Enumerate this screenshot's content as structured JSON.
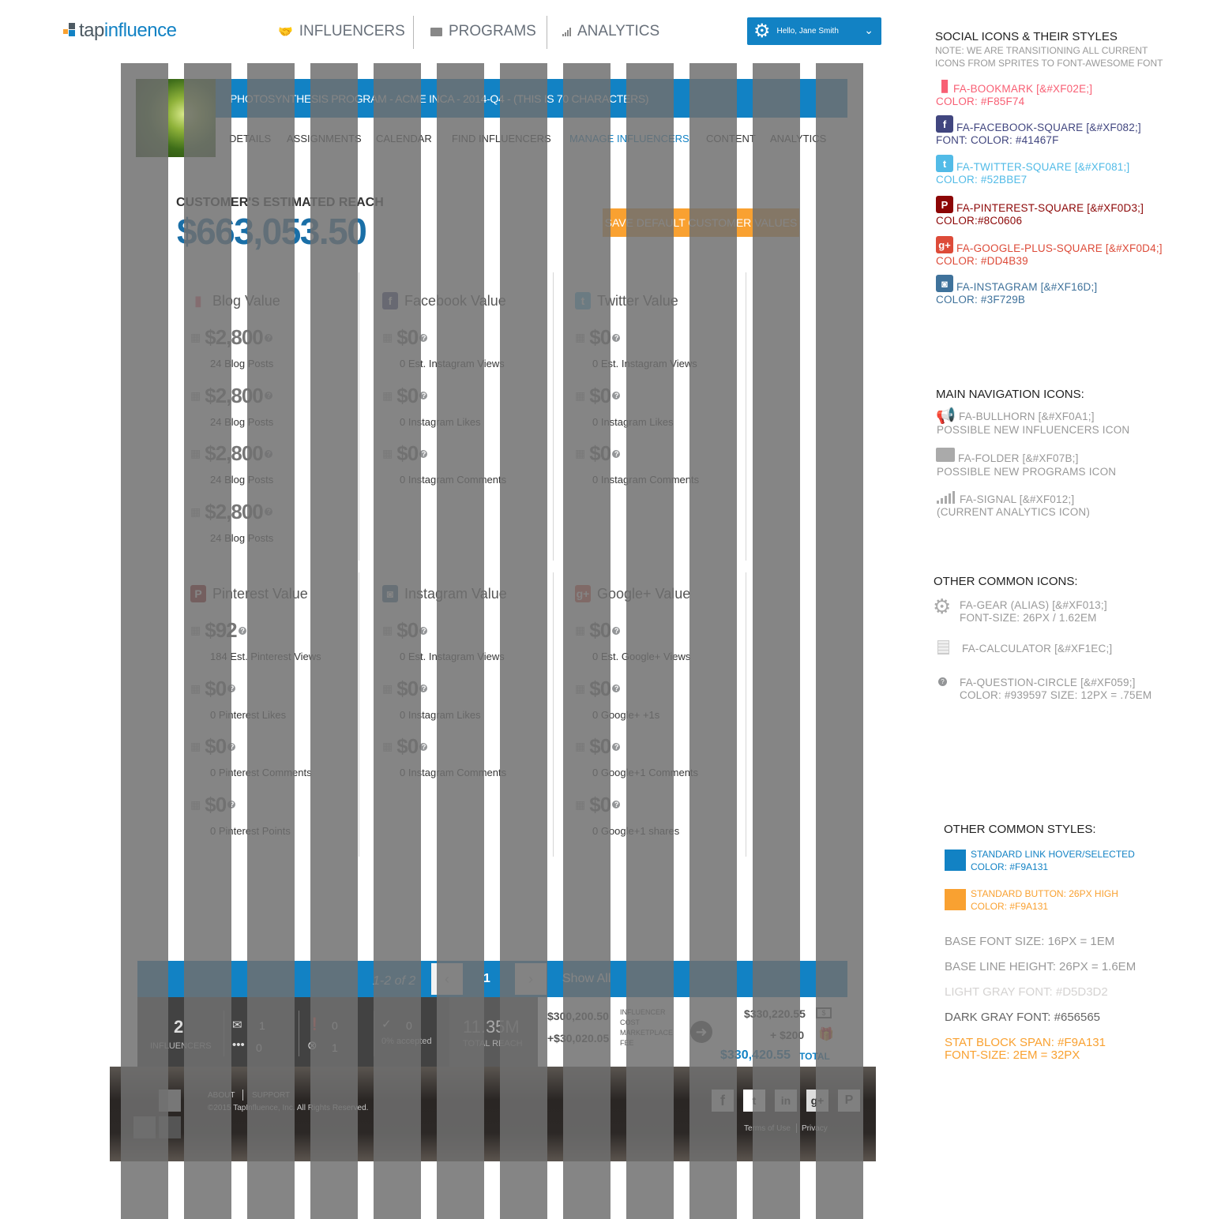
{
  "header": {
    "logo_tap": "tap",
    "logo_influence": "influence",
    "nav": {
      "influencers": "INFLUENCERS",
      "programs": "PROGRAMS",
      "analytics": "ANALYTICS"
    },
    "user_label": "Hello, Jane Smith"
  },
  "program": {
    "title": "PHOTOSYNTHESIS PROGRAM - ACME INCA - 2014-Q4 - (THIS IS 70 CHARACTERS)",
    "tabs": [
      "DETAILS",
      "ASSIGNMENTS",
      "CALENDAR",
      "FIND INFLUENCERS",
      "MANAGE INFLUENCERS",
      "CONTENT",
      "ANALYTICS"
    ],
    "active_tab": "MANAGE INFLUENCERS"
  },
  "reach": {
    "label": "CUSTOMER'S ESTIMATED REACH",
    "value": "$663,053.50",
    "save_button": "SAVE DEFAULT CUSTOMER VALUES"
  },
  "cards": [
    {
      "title": "Blog Value",
      "icon": "bookmark-icon",
      "color": "#F85F74",
      "rows": [
        {
          "amount": "$2,800",
          "desc": "24 Blog Posts"
        },
        {
          "amount": "$2,800",
          "desc": "24 Blog Posts"
        },
        {
          "amount": "$2,800",
          "desc": "24 Blog Posts"
        },
        {
          "amount": "$2,800",
          "desc": "24 Blog Posts"
        }
      ]
    },
    {
      "title": "Facebook Value",
      "icon": "facebook-square-icon",
      "color": "#41467F",
      "rows": [
        {
          "amount": "$0",
          "desc": "0 Est. Instagram Views"
        },
        {
          "amount": "$0",
          "desc": "0 Instagram Likes"
        },
        {
          "amount": "$0",
          "desc": "0 Instagram Comments"
        }
      ]
    },
    {
      "title": "Twitter Value",
      "icon": "twitter-square-icon",
      "color": "#52BBE7",
      "rows": [
        {
          "amount": "$0",
          "desc": "0 Est. Instagram Views"
        },
        {
          "amount": "$0",
          "desc": "0 Instagram Likes"
        },
        {
          "amount": "$0",
          "desc": "0 Instagram Comments"
        }
      ]
    },
    {
      "title": "Pinterest Value",
      "icon": "pinterest-square-icon",
      "color": "#8C0606",
      "rows": [
        {
          "amount": "$92",
          "desc": "184 Est. Pinterest Views"
        },
        {
          "amount": "$0",
          "desc": "0 Pinterest Likes"
        },
        {
          "amount": "$0",
          "desc": "0 Pinterest Comments"
        },
        {
          "amount": "$0",
          "desc": "0 Pinterest Points"
        }
      ]
    },
    {
      "title": "Instagram Value",
      "icon": "instagram-icon",
      "color": "#3F729B",
      "rows": [
        {
          "amount": "$0",
          "desc": "0 Est. Instagram Views"
        },
        {
          "amount": "$0",
          "desc": "0 Instagram Likes"
        },
        {
          "amount": "$0",
          "desc": "0 Instagram Comments"
        }
      ]
    },
    {
      "title": "Google+ Value",
      "icon": "google-plus-square-icon",
      "color": "#DD4B39",
      "rows": [
        {
          "amount": "$0",
          "desc": "0 Est. Google+ Views"
        },
        {
          "amount": "$0",
          "desc": "0 Google+ +1s"
        },
        {
          "amount": "$0",
          "desc": "0 Google+1 Comments"
        },
        {
          "amount": "$0",
          "desc": "0 Google+1 shares"
        }
      ]
    }
  ],
  "pager": {
    "range": "1-2 of 2",
    "page": "1",
    "show_all": "Show All"
  },
  "stats": {
    "influencers_count": "2",
    "influencers_label": "INFLUENCERS",
    "mail": "1",
    "more": "0",
    "alert": "0",
    "declined": "1",
    "accepted_count": "0",
    "accepted_label": "0% accepted",
    "reach_value": "11.35M",
    "reach_label": "TOTAL REACH",
    "cost": "$300,200.50",
    "fee": "+$30,020.05",
    "cost_labels": "INFLUENCER COST MARKETPLACE FEE",
    "sum": "$330,220.55",
    "gift": "+ $200",
    "total": "$330,420.55",
    "total_label": "TOTAL"
  },
  "footer": {
    "about": "ABOUT",
    "support": "SUPPORT",
    "copyright": "©2015 TapInfluence, Inc. All Rights Reserved.",
    "terms": "Terms of Use",
    "privacy": "Privacy"
  },
  "styleguide": {
    "social_title": "SOCIAL ICONS & THEIR STYLES",
    "social_note": "NOTE: WE ARE TRANSITIONING ALL CURRENT ICONS FROM SPRITES TO FONT-AWESOME FONT",
    "social": [
      {
        "name": "FA-BOOKMARK [&#XF02E;]",
        "color_text": "COLOR: #F85F74",
        "color": "#F85F74"
      },
      {
        "name": "FA-FACEBOOK-SQUARE [&#XF082;]",
        "color_text": "FONT: COLOR: #41467F",
        "color": "#41467F"
      },
      {
        "name": "FA-TWITTER-SQUARE [&#XF081;]",
        "color_text": "COLOR: #52BBE7",
        "color": "#52BBE7"
      },
      {
        "name": "FA-PINTEREST-SQUARE [&#XF0D3;]",
        "color_text": "COLOR:#8C0606",
        "color": "#8C0606"
      },
      {
        "name": "FA-GOOGLE-PLUS-SQUARE [&#XF0D4;]",
        "color_text": "COLOR: #DD4B39",
        "color": "#DD4B39"
      },
      {
        "name": "FA-INSTAGRAM [&#XF16D;]",
        "color_text": "COLOR: #3F729B",
        "color": "#3F729B"
      }
    ],
    "nav_title": "MAIN NAVIGATION ICONS:",
    "nav_icons": [
      {
        "name": "FA-BULLHORN [&#XF0A1;]",
        "desc": "POSSIBLE NEW INFLUENCERS ICON"
      },
      {
        "name": "FA-FOLDER [&#XF07B;]",
        "desc": "POSSIBLE NEW PROGRAMS ICON"
      },
      {
        "name": "FA-SIGNAL [&#XF012;]",
        "desc": "(CURRENT ANALYTICS ICON)"
      }
    ],
    "other_icons_title": "OTHER COMMON ICONS:",
    "other_icons": [
      {
        "name": "FA-GEAR (ALIAS) [&#XF013;]",
        "desc": "FONT-SIZE: 26PX / 1.62EM"
      },
      {
        "name": "FA-CALCULATOR [&#XF1EC;]",
        "desc": ""
      },
      {
        "name": "FA-QUESTION-CIRCLE [&#XF059;]",
        "desc": "COLOR: #939597  SIZE: 12PX = .75EM"
      }
    ],
    "styles_title": "OTHER COMMON STYLES:",
    "link_style": "STANDARD LINK HOVER/SELECTED",
    "link_color": "COLOR: #F9A131",
    "button_style": "STANDARD BUTTON: 26PX HIGH",
    "button_color": "COLOR: #F9A131",
    "base_font": "BASE FONT SIZE: 16PX = 1EM",
    "line_height": "BASE LINE HEIGHT: 26PX = 1.6EM",
    "light_gray": "LIGHT GRAY FONT: #D5D3D2",
    "dark_gray": "DARK GRAY FONT: #656565",
    "stat_span": "STAT BLOCK SPAN: #F9A131",
    "stat_size": "FONT-SIZE: 2EM = 32PX"
  }
}
